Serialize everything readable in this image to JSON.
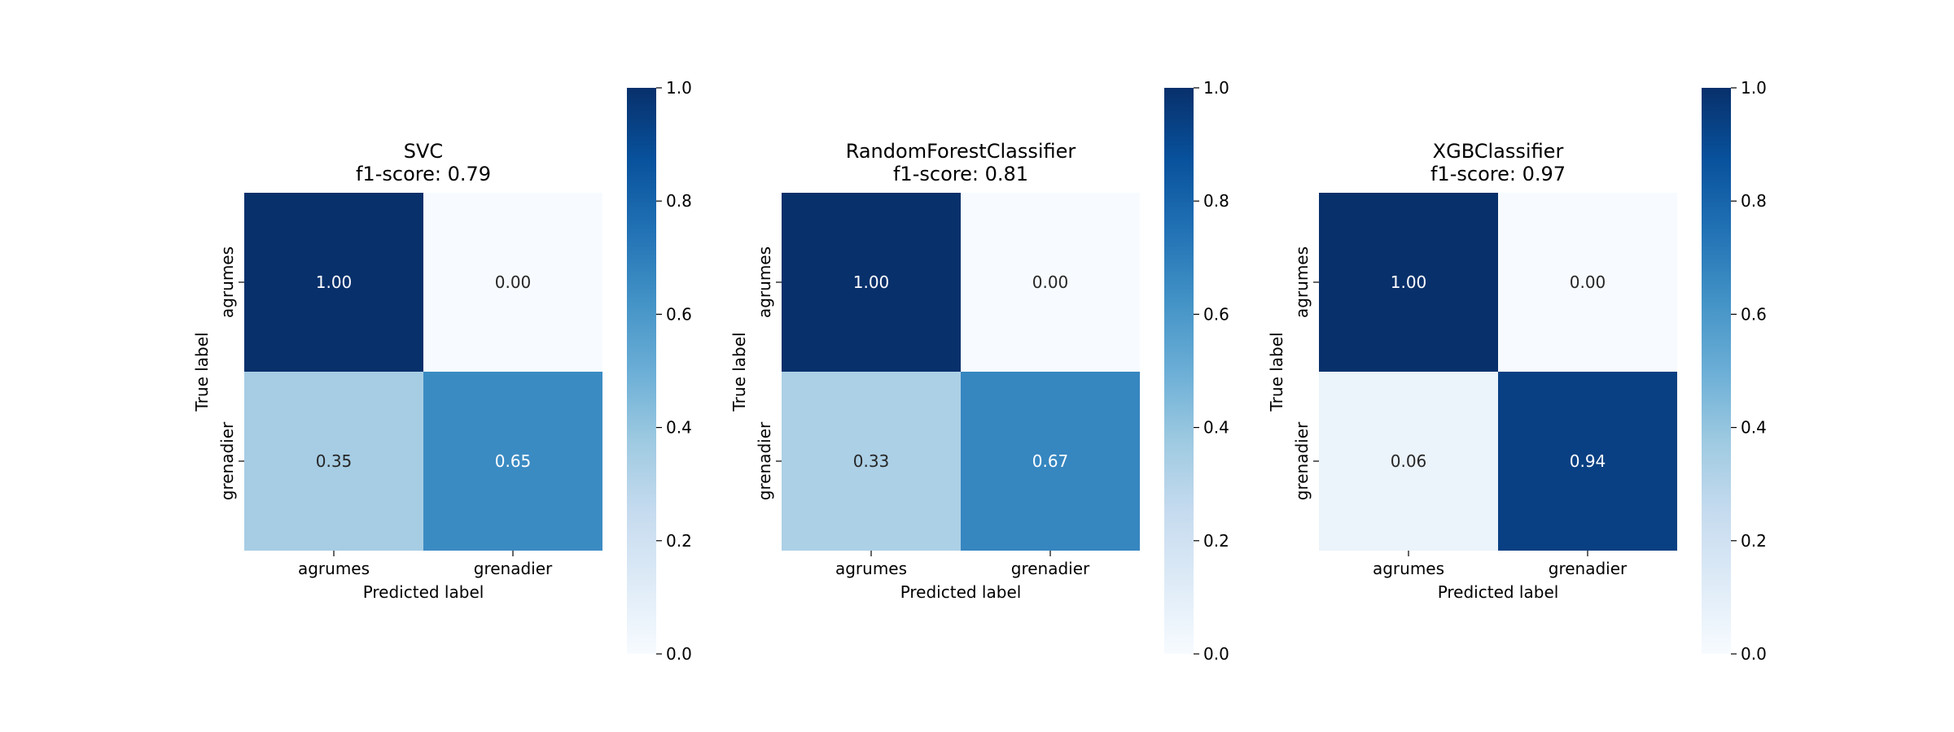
{
  "chart_data": [
    {
      "type": "heatmap",
      "title": "SVC",
      "subtitle": "f1-score: 0.79",
      "xlabel": "Predicted label",
      "ylabel": "True label",
      "x_categories": [
        "agrumes",
        "grenadier"
      ],
      "y_categories": [
        "agrumes",
        "grenadier"
      ],
      "matrix": [
        [
          1.0,
          0.0
        ],
        [
          0.35,
          0.65
        ]
      ],
      "cell_labels": [
        [
          "1.00",
          "0.00"
        ],
        [
          "0.35",
          "0.65"
        ]
      ],
      "colorbar": {
        "range": [
          0,
          1
        ],
        "ticks": [
          "0.0",
          "0.2",
          "0.4",
          "0.6",
          "0.8",
          "1.0"
        ],
        "colormap": "Blues"
      }
    },
    {
      "type": "heatmap",
      "title": "RandomForestClassifier",
      "subtitle": "f1-score: 0.81",
      "xlabel": "Predicted label",
      "ylabel": "True label",
      "x_categories": [
        "agrumes",
        "grenadier"
      ],
      "y_categories": [
        "agrumes",
        "grenadier"
      ],
      "matrix": [
        [
          1.0,
          0.0
        ],
        [
          0.33,
          0.67
        ]
      ],
      "cell_labels": [
        [
          "1.00",
          "0.00"
        ],
        [
          "0.33",
          "0.67"
        ]
      ],
      "colorbar": {
        "range": [
          0,
          1
        ],
        "ticks": [
          "0.0",
          "0.2",
          "0.4",
          "0.6",
          "0.8",
          "1.0"
        ],
        "colormap": "Blues"
      }
    },
    {
      "type": "heatmap",
      "title": "XGBClassifier",
      "subtitle": "f1-score: 0.97",
      "xlabel": "Predicted label",
      "ylabel": "True label",
      "x_categories": [
        "agrumes",
        "grenadier"
      ],
      "y_categories": [
        "agrumes",
        "grenadier"
      ],
      "matrix": [
        [
          1.0,
          0.0
        ],
        [
          0.06,
          0.94
        ]
      ],
      "cell_labels": [
        [
          "1.00",
          "0.00"
        ],
        [
          "0.06",
          "0.94"
        ]
      ],
      "colorbar": {
        "range": [
          0,
          1
        ],
        "ticks": [
          "0.0",
          "0.2",
          "0.4",
          "0.6",
          "0.8",
          "1.0"
        ],
        "colormap": "Blues"
      }
    }
  ]
}
